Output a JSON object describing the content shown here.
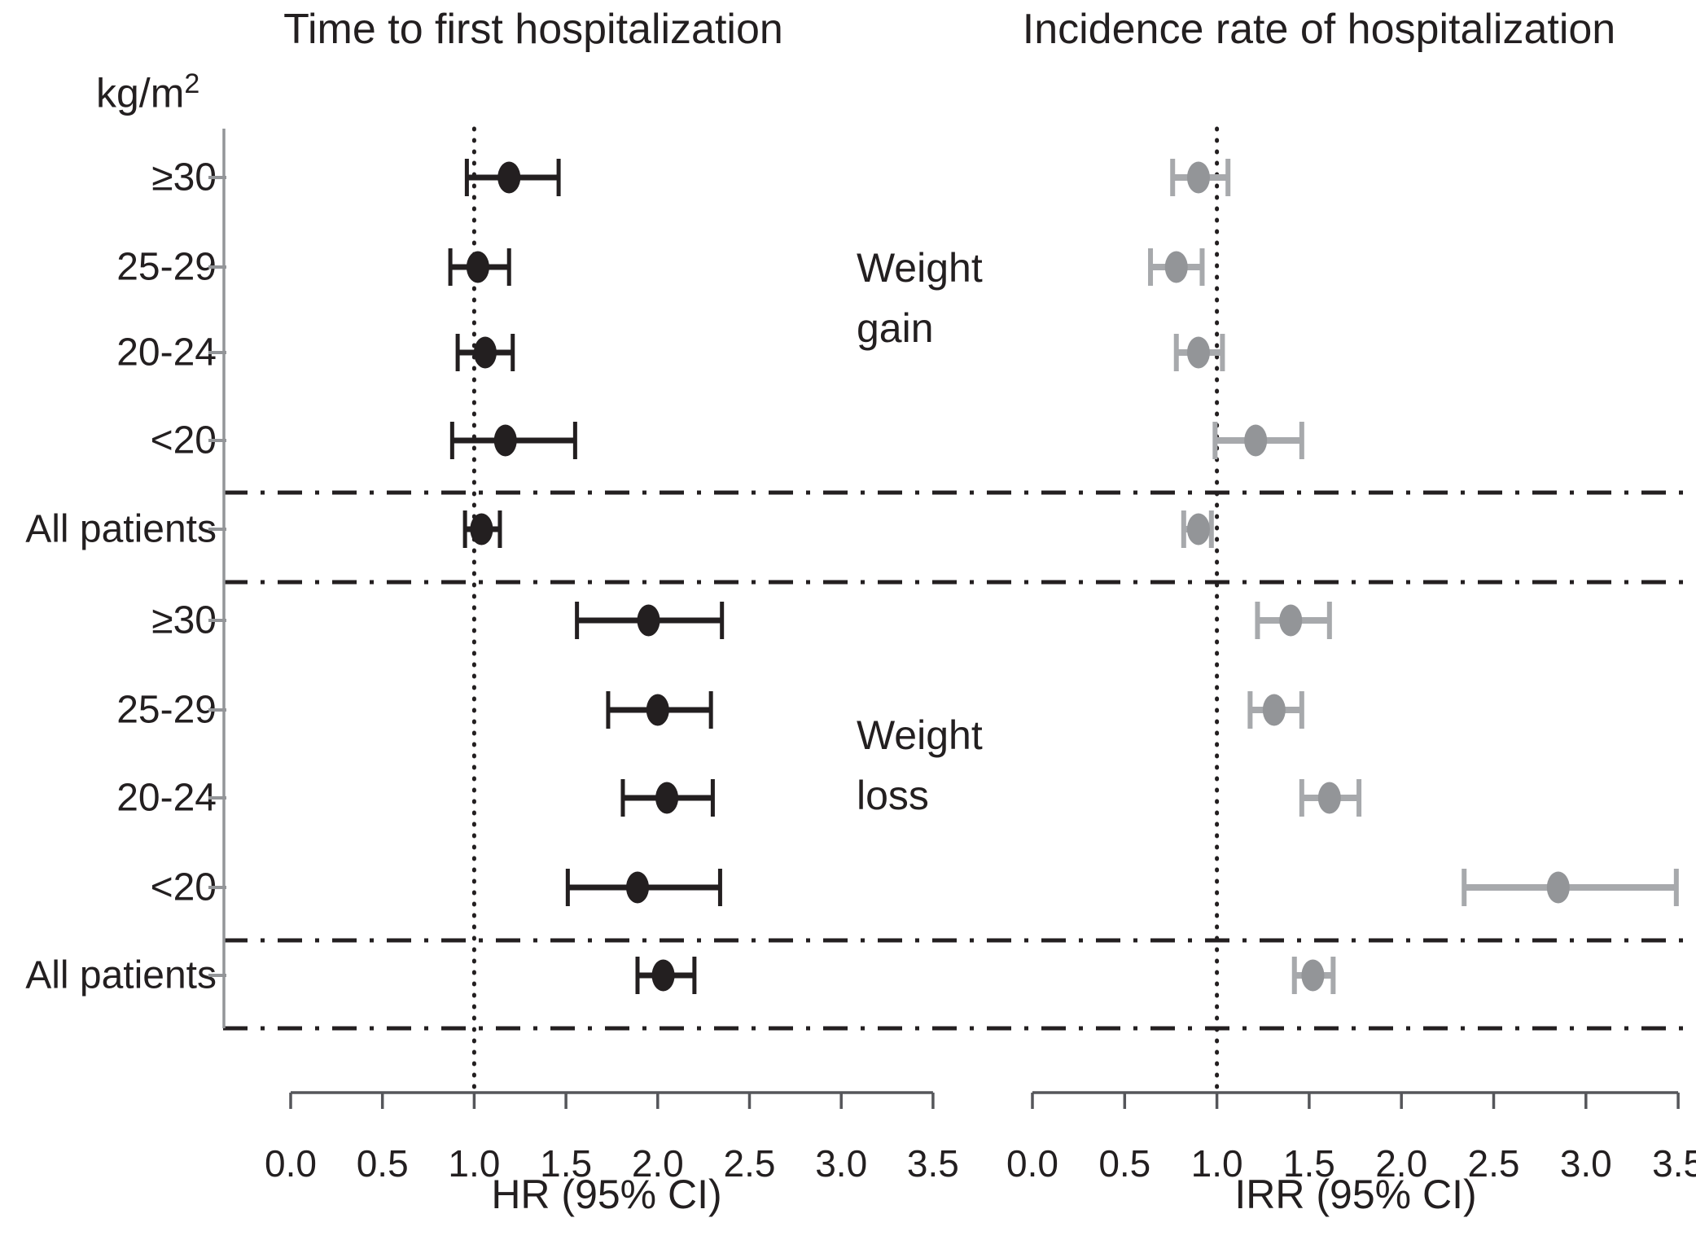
{
  "figure": {
    "y_axis_unit": {
      "main": "kg/m",
      "sup": "2"
    },
    "group_labels": [
      {
        "line1": "Weight",
        "line2": "gain"
      },
      {
        "line1": "Weight",
        "line2": "loss"
      }
    ],
    "colors": {
      "black_marker": "#231f20",
      "black_ci": "#231f20",
      "gray_marker": "#939598",
      "gray_ci": "#a7a9ac",
      "axis_line": "#55565a",
      "y_axis_line": "#939598",
      "text": "#231f20",
      "background": "#ffffff"
    }
  },
  "chart_data": {
    "type": "forest",
    "row_categories": [
      "≥30",
      "25-29",
      "20-24",
      "<20",
      "All patients",
      "≥30",
      "25-29",
      "20-24",
      "<20",
      "All patients"
    ],
    "row_groups": [
      "Weight gain",
      "Weight gain",
      "Weight gain",
      "Weight gain",
      "Weight gain",
      "Weight loss",
      "Weight loss",
      "Weight loss",
      "Weight loss",
      "Weight loss"
    ],
    "x_tick_labels": [
      "0.0",
      "0.5",
      "1.0",
      "1.5",
      "2.0",
      "2.5",
      "3.0",
      "3.5"
    ],
    "x_range": [
      0,
      3.5
    ],
    "reference_line_x": 1.0,
    "grid": "off",
    "panels": [
      {
        "title": "Time to first hospitalization",
        "xlabel": "HR (95% CI)",
        "marker_color": "#231f20",
        "ci_color": "#231f20",
        "estimates": [
          {
            "group": "Weight gain",
            "category": "≥30",
            "value": 1.19,
            "lo": 0.96,
            "hi": 1.46
          },
          {
            "group": "Weight gain",
            "category": "25-29",
            "value": 1.02,
            "lo": 0.87,
            "hi": 1.19
          },
          {
            "group": "Weight gain",
            "category": "20-24",
            "value": 1.06,
            "lo": 0.91,
            "hi": 1.21
          },
          {
            "group": "Weight gain",
            "category": "<20",
            "value": 1.17,
            "lo": 0.88,
            "hi": 1.55
          },
          {
            "group": "Weight gain",
            "category": "All patients",
            "value": 1.04,
            "lo": 0.95,
            "hi": 1.14
          },
          {
            "group": "Weight loss",
            "category": "≥30",
            "value": 1.95,
            "lo": 1.56,
            "hi": 2.35
          },
          {
            "group": "Weight loss",
            "category": "25-29",
            "value": 2.0,
            "lo": 1.73,
            "hi": 2.29
          },
          {
            "group": "Weight loss",
            "category": "20-24",
            "value": 2.05,
            "lo": 1.81,
            "hi": 2.3
          },
          {
            "group": "Weight loss",
            "category": "<20",
            "value": 1.89,
            "lo": 1.51,
            "hi": 2.34
          },
          {
            "group": "Weight loss",
            "category": "All patients",
            "value": 2.03,
            "lo": 1.89,
            "hi": 2.2
          }
        ]
      },
      {
        "title": "Incidence rate of hospitalization",
        "xlabel": "IRR (95% CI)",
        "marker_color": "#939598",
        "ci_color": "#a7a9ac",
        "estimates": [
          {
            "group": "Weight gain",
            "category": "≥30",
            "value": 0.9,
            "lo": 0.76,
            "hi": 1.06
          },
          {
            "group": "Weight gain",
            "category": "25-29",
            "value": 0.78,
            "lo": 0.64,
            "hi": 0.92
          },
          {
            "group": "Weight gain",
            "category": "20-24",
            "value": 0.9,
            "lo": 0.78,
            "hi": 1.03
          },
          {
            "group": "Weight gain",
            "category": "<20",
            "value": 1.21,
            "lo": 0.99,
            "hi": 1.46
          },
          {
            "group": "Weight gain",
            "category": "All patients",
            "value": 0.9,
            "lo": 0.82,
            "hi": 0.97
          },
          {
            "group": "Weight loss",
            "category": "≥30",
            "value": 1.4,
            "lo": 1.22,
            "hi": 1.61
          },
          {
            "group": "Weight loss",
            "category": "25-29",
            "value": 1.31,
            "lo": 1.18,
            "hi": 1.46
          },
          {
            "group": "Weight loss",
            "category": "20-24",
            "value": 1.61,
            "lo": 1.46,
            "hi": 1.77
          },
          {
            "group": "Weight loss",
            "category": "<20",
            "value": 2.85,
            "lo": 2.34,
            "hi": 3.49
          },
          {
            "group": "Weight loss",
            "category": "All patients",
            "value": 1.52,
            "lo": 1.42,
            "hi": 1.63
          }
        ]
      }
    ]
  }
}
